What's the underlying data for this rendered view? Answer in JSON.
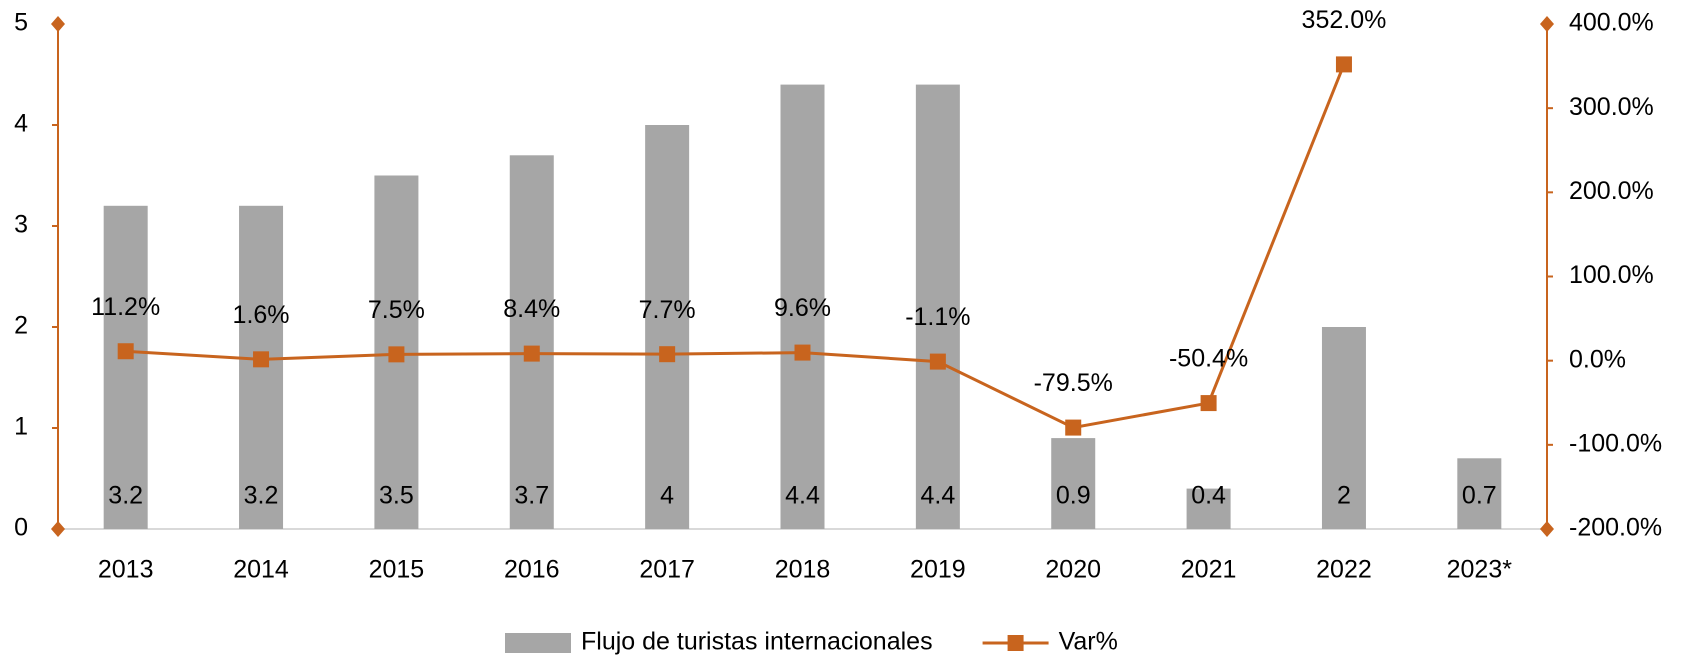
{
  "chart_data": {
    "type": "bar",
    "categories": [
      "2013",
      "2014",
      "2015",
      "2016",
      "2017",
      "2018",
      "2019",
      "2020",
      "2021",
      "2022",
      "2023*"
    ],
    "series": [
      {
        "name": "Flujo de turistas internacionales",
        "type": "bar",
        "color": "#a6a6a6",
        "axis": "y",
        "values": [
          3.2,
          3.2,
          3.5,
          3.7,
          4,
          4.4,
          4.4,
          0.9,
          0.4,
          2,
          0.7
        ]
      },
      {
        "name": "Var%",
        "type": "line",
        "color": "#c8641e",
        "axis": "y2",
        "values": [
          11.2,
          1.6,
          7.5,
          8.4,
          7.7,
          9.6,
          -1.1,
          -79.5,
          -50.4,
          352.0,
          null
        ],
        "value_labels": [
          "11.2%",
          "1.6%",
          "7.5%",
          "8.4%",
          "7.7%",
          "9.6%",
          "-1.1%",
          "-79.5%",
          "-50.4%",
          "352.0%",
          null
        ]
      }
    ],
    "ylim": [
      0,
      5
    ],
    "yticks": [
      0,
      1,
      2,
      3,
      4,
      5
    ],
    "y2lim": [
      -200,
      400
    ],
    "y2ticks": [
      {
        "value": -200,
        "label": "-200.0%"
      },
      {
        "value": -100,
        "label": "-100.0%"
      },
      {
        "value": 0,
        "label": "0.0%"
      },
      {
        "value": 100,
        "label": "100.0%"
      },
      {
        "value": 200,
        "label": "200.0%"
      },
      {
        "value": 300,
        "label": "300.0%"
      },
      {
        "value": 400,
        "label": "400.0%"
      }
    ],
    "axis_color": "#c8641e",
    "grid": false,
    "legend": "bottom"
  }
}
